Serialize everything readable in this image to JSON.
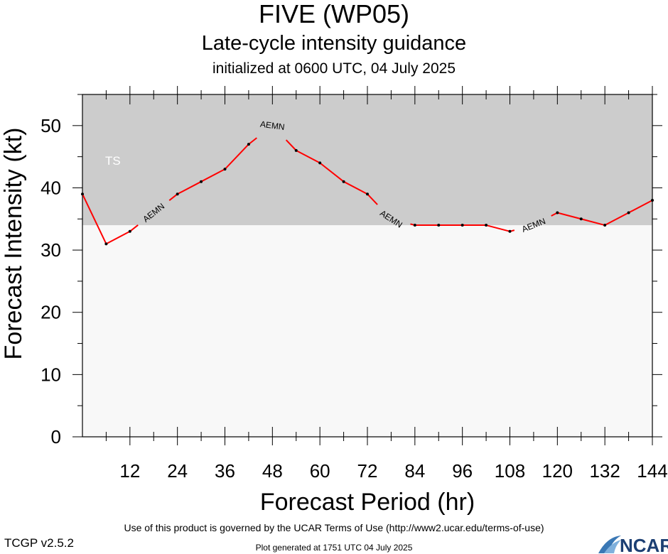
{
  "header": {
    "title": "FIVE (WP05)",
    "subtitle": "Late-cycle intensity guidance",
    "init": "initialized at 0600 UTC, 04 July 2025"
  },
  "footer": {
    "terms": "Use of this product is governed by the UCAR Terms of Use (http://www2.ucar.edu/terms-of-use)",
    "version": "TCGP v2.5.2",
    "generated": "Plot generated at 1751 UTC   04 July 2025",
    "logo_text": "NCAR"
  },
  "chart_data": {
    "type": "line",
    "xlabel": "Forecast Period (hr)",
    "ylabel": "Forecast Intensity (kt)",
    "xlim": [
      0,
      144
    ],
    "ylim": [
      0,
      55
    ],
    "xticks": [
      12,
      24,
      36,
      48,
      60,
      72,
      84,
      96,
      108,
      120,
      132,
      144
    ],
    "yticks": [
      0,
      10,
      20,
      30,
      40,
      50
    ],
    "bands": [
      {
        "label": "TS",
        "from": 34,
        "to": 55,
        "color": "#cccccc"
      }
    ],
    "series": [
      {
        "name": "AEMN",
        "color": "#ff0000",
        "x": [
          0,
          6,
          12,
          18,
          24,
          30,
          36,
          42,
          48,
          54,
          60,
          66,
          72,
          78,
          84,
          90,
          96,
          102,
          108,
          114,
          120,
          126,
          132,
          138,
          144
        ],
        "y": [
          39,
          31,
          33,
          36,
          39,
          41,
          43,
          47,
          50,
          46,
          44,
          41,
          39,
          35,
          34,
          34,
          34,
          34,
          33,
          34,
          36,
          35,
          34,
          36,
          38
        ],
        "label_at_index": [
          3,
          8,
          13,
          19
        ]
      }
    ],
    "colors": {
      "plot_background": "#f8f8f8",
      "line": "#ff0000",
      "marker": "#000000"
    }
  }
}
